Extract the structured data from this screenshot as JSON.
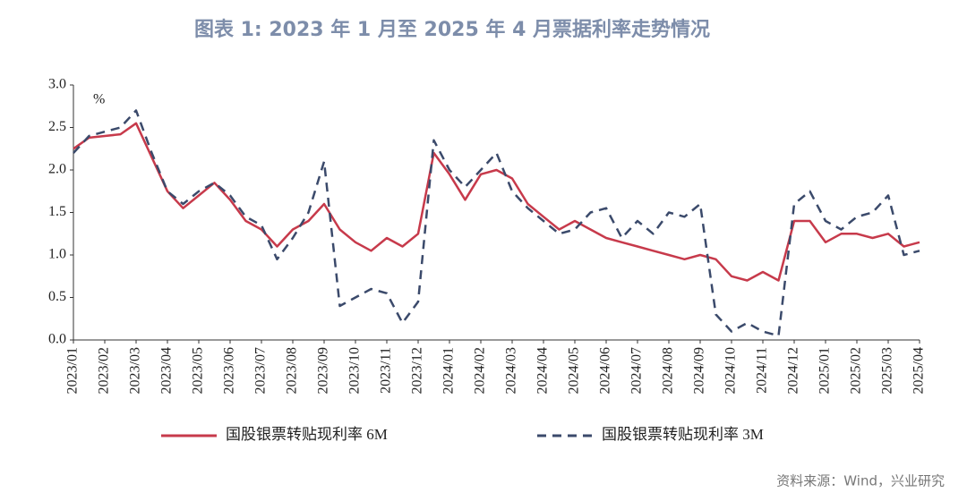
{
  "chart_data": {
    "type": "line",
    "title": "图表 1:  2023 年 1 月至 2025 年 4 月票据利率走势情况",
    "y_unit": "%",
    "source": "资料来源：Wind，兴业研究",
    "categories": [
      "2023/01",
      null,
      "2023/02",
      null,
      "2023/03",
      null,
      "2023/04",
      null,
      "2023/05",
      null,
      "2023/06",
      null,
      "2023/07",
      null,
      "2023/08",
      null,
      "2023/09",
      null,
      "2023/10",
      null,
      "2023/11",
      null,
      "2023/12",
      null,
      "2024/01",
      null,
      "2024/02",
      null,
      "2024/03",
      null,
      "2024/04",
      null,
      "2024/05",
      null,
      "2024/06",
      null,
      "2024/07",
      null,
      "2024/08",
      null,
      "2024/09",
      null,
      "2024/10",
      null,
      "2024/11",
      null,
      "2024/12",
      null,
      "2025/01",
      null,
      "2025/02",
      null,
      "2025/03",
      null,
      "2025/04"
    ],
    "series": [
      {
        "name": "国股银票转贴现利率 6M",
        "color": "#c73a4b",
        "dash": false,
        "values": [
          2.25,
          2.38,
          2.4,
          2.42,
          2.55,
          2.15,
          1.75,
          1.55,
          1.7,
          1.85,
          1.65,
          1.4,
          1.3,
          1.1,
          1.3,
          1.4,
          1.6,
          1.3,
          1.15,
          1.05,
          1.2,
          1.1,
          1.25,
          2.2,
          1.95,
          1.65,
          1.95,
          2.0,
          1.9,
          1.6,
          1.45,
          1.3,
          1.4,
          1.3,
          1.2,
          1.15,
          1.1,
          1.05,
          1.0,
          0.95,
          1.0,
          0.95,
          0.75,
          0.7,
          0.8,
          0.7,
          1.4,
          1.4,
          1.15,
          1.25,
          1.25,
          1.2,
          1.25,
          1.1,
          1.15
        ]
      },
      {
        "name": "国股银票转贴现利率 3M",
        "color": "#3b4a6b",
        "dash": true,
        "values": [
          2.2,
          2.4,
          2.45,
          2.5,
          2.7,
          2.2,
          1.75,
          1.6,
          1.75,
          1.85,
          1.7,
          1.45,
          1.35,
          0.95,
          1.2,
          1.5,
          2.1,
          0.4,
          0.5,
          0.6,
          0.55,
          0.2,
          0.45,
          2.35,
          2.0,
          1.8,
          2.0,
          2.2,
          1.75,
          1.55,
          1.4,
          1.25,
          1.3,
          1.5,
          1.55,
          1.2,
          1.4,
          1.25,
          1.5,
          1.45,
          1.6,
          0.3,
          0.1,
          0.2,
          0.1,
          0.05,
          1.6,
          1.75,
          1.4,
          1.3,
          1.45,
          1.5,
          1.7,
          1.0,
          1.05
        ]
      }
    ],
    "ylim": [
      0,
      3
    ],
    "yticks": [
      {
        "value": 0,
        "label": "0.0"
      },
      0.5,
      {
        "value": 1,
        "label": "1.0"
      },
      1.5,
      {
        "value": 2,
        "label": "2.0"
      },
      2.5,
      {
        "value": 3,
        "label": "3.0"
      }
    ],
    "grid": false,
    "legend": "bottom"
  }
}
